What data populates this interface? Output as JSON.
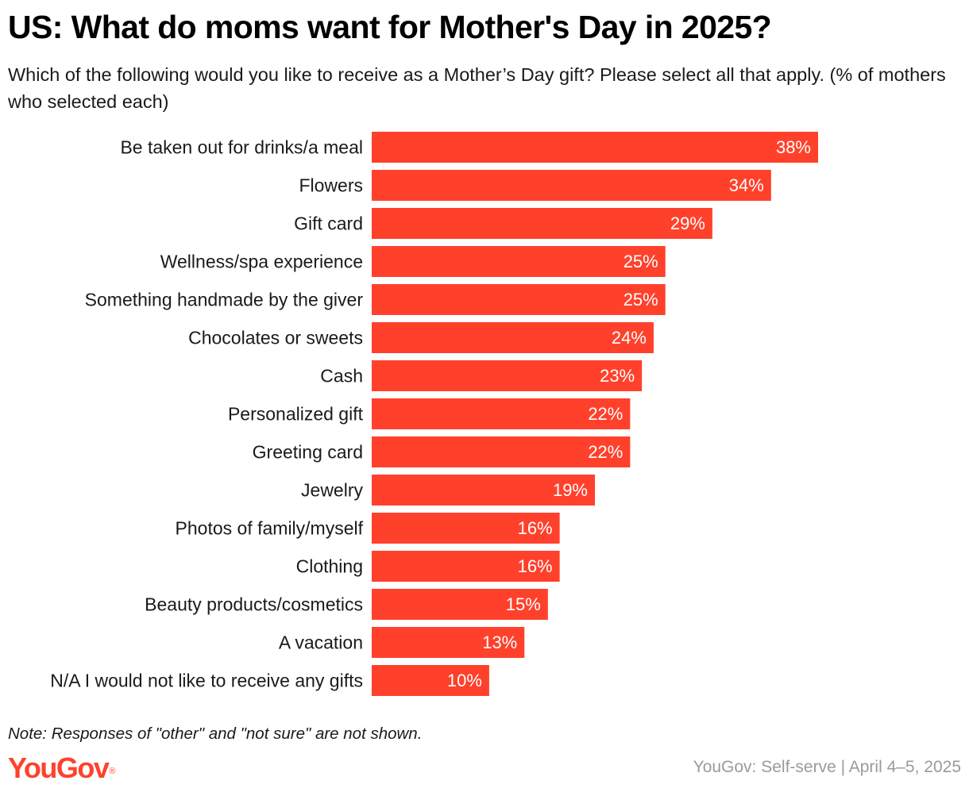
{
  "title": "US: What do moms want for Mother's Day in 2025?",
  "subtitle": "Which of the following would you like to receive as a Mother’s Day gift? Please select all that apply. (% of mothers who selected each)",
  "note": "Note: Responses of \"other\" and \"not sure\" are not shown.",
  "logo": {
    "text": "YouGov",
    "mark": "®",
    "color": "#ff412c"
  },
  "source": "YouGov: Self-serve | April 4–5, 2025",
  "colors": {
    "bar": "#ff412c",
    "value_label": "#ffffff"
  },
  "chart_data": {
    "type": "bar",
    "orientation": "horizontal",
    "categories": [
      "Be taken out for drinks/a meal",
      "Flowers",
      "Gift card",
      "Wellness/spa experience",
      "Something handmade by the giver",
      "Chocolates or sweets",
      "Cash",
      "Personalized gift",
      "Greeting card",
      "Jewelry",
      "Photos of family/myself",
      "Clothing",
      "Beauty products/cosmetics",
      "A vacation",
      "N/A I would not like to receive any gifts"
    ],
    "values": [
      38,
      34,
      29,
      25,
      25,
      24,
      23,
      22,
      22,
      19,
      16,
      16,
      15,
      13,
      10
    ],
    "value_labels": [
      "38%",
      "34%",
      "29%",
      "25%",
      "25%",
      "24%",
      "23%",
      "22%",
      "22%",
      "19%",
      "16%",
      "16%",
      "15%",
      "13%",
      "10%"
    ],
    "unit": "%",
    "xlim": [
      0,
      38
    ],
    "grid": false,
    "legend": "none"
  }
}
